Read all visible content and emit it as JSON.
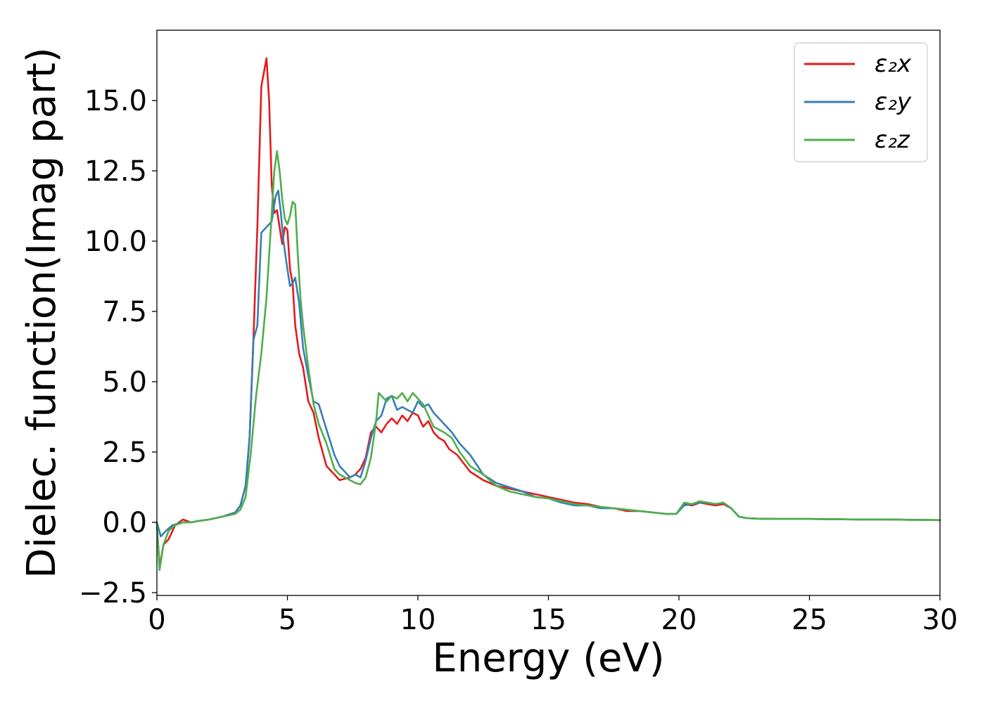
{
  "chart_data": {
    "type": "line",
    "xlabel": "Energy (eV)",
    "ylabel": "Dielec. function(Imag part)",
    "xlim": [
      0,
      30
    ],
    "ylim": [
      -2.6,
      17.5
    ],
    "xticks": [
      "0",
      "5",
      "10",
      "15",
      "20",
      "25",
      "30"
    ],
    "yticks": [
      "−2.5",
      "0.0",
      "2.5",
      "5.0",
      "7.5",
      "10.0",
      "12.5",
      "15.0"
    ],
    "grid": false,
    "legend_position": "top-right",
    "series": [
      {
        "name": "ε₂x",
        "color": "#e41a1c",
        "x": [
          0,
          0.1,
          0.25,
          0.45,
          0.7,
          1.0,
          1.3,
          1.6,
          2.0,
          2.5,
          3.0,
          3.2,
          3.4,
          3.55,
          3.7,
          3.85,
          4.0,
          4.1,
          4.2,
          4.3,
          4.4,
          4.5,
          4.6,
          4.7,
          4.8,
          4.9,
          5.0,
          5.1,
          5.2,
          5.3,
          5.45,
          5.6,
          5.8,
          6.0,
          6.2,
          6.5,
          6.8,
          7.0,
          7.2,
          7.4,
          7.6,
          7.8,
          8.0,
          8.2,
          8.4,
          8.6,
          8.8,
          9.0,
          9.2,
          9.4,
          9.6,
          9.8,
          10.0,
          10.2,
          10.4,
          10.6,
          10.8,
          11.0,
          11.2,
          11.5,
          12.0,
          12.5,
          13.0,
          13.5,
          14.0,
          14.5,
          15.0,
          15.5,
          16.0,
          16.5,
          17.0,
          17.5,
          18.0,
          18.5,
          19.0,
          19.5,
          19.9,
          20.2,
          20.5,
          20.8,
          21.1,
          21.4,
          21.7,
          22.0,
          22.3,
          22.6,
          23.0,
          24.0,
          25.0,
          26.0,
          27.0,
          28.0,
          29.0,
          30.0
        ],
        "y": [
          0.0,
          -1.6,
          -0.8,
          -0.6,
          -0.1,
          0.1,
          0.0,
          0.05,
          0.1,
          0.2,
          0.35,
          0.6,
          1.3,
          3.0,
          6.6,
          10.5,
          15.5,
          16.0,
          16.5,
          15.0,
          12.0,
          11.0,
          11.1,
          10.5,
          9.9,
          10.5,
          10.4,
          9.0,
          8.5,
          7.0,
          6.0,
          5.5,
          4.3,
          3.9,
          3.0,
          2.0,
          1.7,
          1.5,
          1.55,
          1.6,
          1.7,
          1.9,
          2.3,
          3.2,
          3.4,
          3.2,
          3.5,
          3.7,
          3.5,
          3.8,
          3.6,
          3.9,
          3.8,
          3.4,
          3.6,
          3.2,
          3.0,
          2.9,
          2.6,
          2.4,
          1.8,
          1.5,
          1.3,
          1.2,
          1.1,
          1.0,
          0.9,
          0.8,
          0.7,
          0.65,
          0.55,
          0.5,
          0.4,
          0.4,
          0.35,
          0.3,
          0.3,
          0.65,
          0.6,
          0.7,
          0.65,
          0.6,
          0.65,
          0.5,
          0.2,
          0.15,
          0.13,
          0.12,
          0.12,
          0.11,
          0.1,
          0.1,
          0.09,
          0.08
        ]
      },
      {
        "name": "ε₂y",
        "color": "#377eb8",
        "x": [
          0,
          0.15,
          0.35,
          0.6,
          1.0,
          1.3,
          1.6,
          2.0,
          2.5,
          3.0,
          3.2,
          3.4,
          3.55,
          3.7,
          3.85,
          4.0,
          4.2,
          4.4,
          4.55,
          4.65,
          4.75,
          4.85,
          5.0,
          5.1,
          5.2,
          5.3,
          5.45,
          5.6,
          5.8,
          6.0,
          6.2,
          6.5,
          6.8,
          7.0,
          7.2,
          7.4,
          7.6,
          7.8,
          8.0,
          8.2,
          8.4,
          8.6,
          8.8,
          9.0,
          9.2,
          9.4,
          9.6,
          9.8,
          10.0,
          10.2,
          10.4,
          10.6,
          10.8,
          11.0,
          11.3,
          11.6,
          12.0,
          12.5,
          13.0,
          13.5,
          14.0,
          14.5,
          15.0,
          15.5,
          16.0,
          16.5,
          17.0,
          17.5,
          18.0,
          18.5,
          19.0,
          19.5,
          19.9,
          20.2,
          20.5,
          20.8,
          21.1,
          21.4,
          21.7,
          22.0,
          22.3,
          22.6,
          23.0,
          24.0,
          25.0,
          26.0,
          27.0,
          28.0,
          29.0,
          30.0
        ],
        "y": [
          0.0,
          -0.5,
          -0.3,
          -0.1,
          0.0,
          0.0,
          0.05,
          0.1,
          0.2,
          0.35,
          0.6,
          1.3,
          3.0,
          6.5,
          7.0,
          10.3,
          10.5,
          10.7,
          11.6,
          11.8,
          11.0,
          10.0,
          9.0,
          8.4,
          8.5,
          8.7,
          7.8,
          6.2,
          5.2,
          4.3,
          4.2,
          3.3,
          2.4,
          2.0,
          1.8,
          1.6,
          1.7,
          1.6,
          2.2,
          3.0,
          3.6,
          3.8,
          4.4,
          4.5,
          4.0,
          4.1,
          4.0,
          3.9,
          4.3,
          4.1,
          4.2,
          3.9,
          3.7,
          3.5,
          3.2,
          2.8,
          2.4,
          1.7,
          1.4,
          1.25,
          1.1,
          0.9,
          0.85,
          0.7,
          0.6,
          0.6,
          0.5,
          0.5,
          0.45,
          0.4,
          0.35,
          0.3,
          0.3,
          0.6,
          0.65,
          0.7,
          0.7,
          0.65,
          0.7,
          0.5,
          0.2,
          0.15,
          0.13,
          0.12,
          0.12,
          0.11,
          0.1,
          0.1,
          0.09,
          0.08
        ]
      },
      {
        "name": "ε₂z",
        "color": "#4daf4a",
        "x": [
          0,
          0.1,
          0.25,
          0.45,
          0.7,
          1.0,
          1.3,
          1.6,
          2.0,
          2.5,
          3.0,
          3.2,
          3.4,
          3.6,
          3.8,
          4.0,
          4.2,
          4.4,
          4.5,
          4.6,
          4.7,
          4.8,
          4.9,
          5.0,
          5.1,
          5.2,
          5.3,
          5.4,
          5.5,
          5.6,
          5.8,
          6.0,
          6.2,
          6.5,
          6.8,
          7.0,
          7.2,
          7.4,
          7.6,
          7.8,
          8.0,
          8.2,
          8.4,
          8.5,
          8.6,
          8.8,
          9.0,
          9.2,
          9.4,
          9.6,
          9.8,
          10.0,
          10.2,
          10.4,
          10.6,
          10.8,
          11.0,
          11.3,
          11.6,
          12.0,
          12.5,
          13.0,
          13.5,
          14.0,
          14.5,
          15.0,
          15.5,
          16.0,
          16.5,
          17.0,
          17.5,
          18.0,
          18.5,
          19.0,
          19.5,
          19.9,
          20.2,
          20.5,
          20.8,
          21.1,
          21.4,
          21.7,
          22.0,
          22.3,
          22.6,
          23.0,
          24.0,
          25.0,
          26.0,
          27.0,
          28.0,
          29.0,
          30.0
        ],
        "y": [
          0.0,
          -1.7,
          -0.8,
          -0.3,
          -0.1,
          0.0,
          0.0,
          0.05,
          0.1,
          0.2,
          0.3,
          0.45,
          0.9,
          2.5,
          4.5,
          6.0,
          8.0,
          11.0,
          12.5,
          13.2,
          12.5,
          11.5,
          10.8,
          10.6,
          10.9,
          11.4,
          11.3,
          9.5,
          8.0,
          7.0,
          5.5,
          4.2,
          3.5,
          2.8,
          1.9,
          1.7,
          1.6,
          1.5,
          1.4,
          1.35,
          1.6,
          2.3,
          3.6,
          4.6,
          4.5,
          4.3,
          4.5,
          4.4,
          4.6,
          4.3,
          4.6,
          4.4,
          4.2,
          3.8,
          3.4,
          3.3,
          3.2,
          3.0,
          2.5,
          2.0,
          1.7,
          1.3,
          1.1,
          1.0,
          0.9,
          0.85,
          0.75,
          0.65,
          0.6,
          0.55,
          0.5,
          0.45,
          0.4,
          0.35,
          0.3,
          0.3,
          0.7,
          0.65,
          0.75,
          0.7,
          0.65,
          0.7,
          0.5,
          0.2,
          0.15,
          0.13,
          0.12,
          0.12,
          0.11,
          0.1,
          0.1,
          0.09,
          0.08
        ]
      }
    ]
  }
}
